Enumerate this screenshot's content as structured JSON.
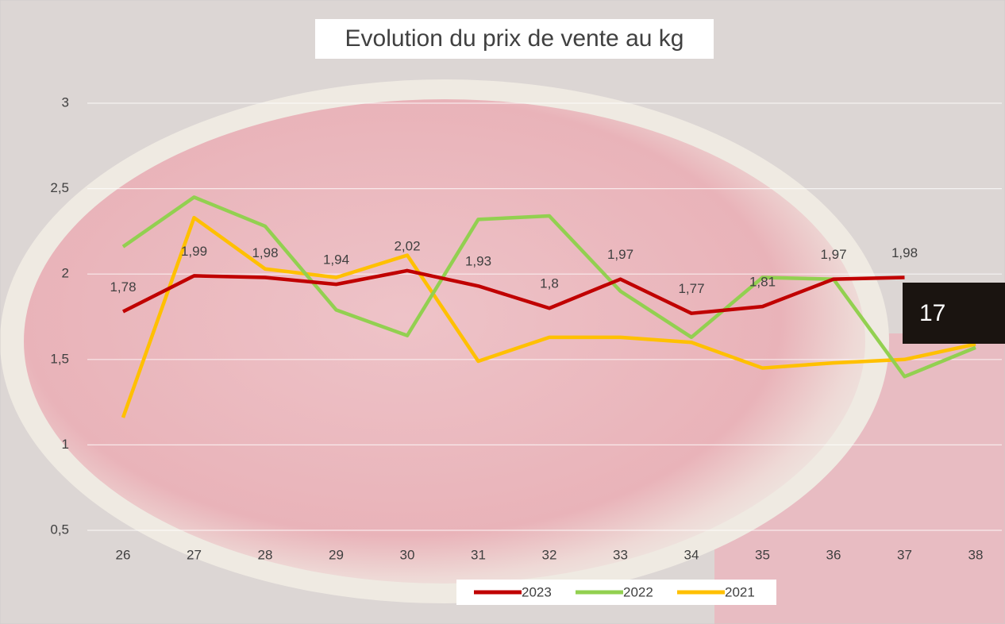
{
  "chart_data": {
    "type": "line",
    "title": "Evolution du prix de vente au kg",
    "categories": [
      "26",
      "27",
      "28",
      "29",
      "30",
      "31",
      "32",
      "33",
      "34",
      "35",
      "36",
      "37",
      "38"
    ],
    "series": [
      {
        "name": "2023",
        "color": "#c00000",
        "values": [
          1.78,
          1.99,
          1.98,
          1.94,
          2.02,
          1.93,
          1.8,
          1.97,
          1.77,
          1.81,
          1.97,
          1.98,
          null
        ],
        "value_labels": [
          "1,78",
          "1,99",
          "1,98",
          "1,94",
          "2,02",
          "1,93",
          "1,8",
          "1,97",
          "1,77",
          "1,81",
          "1,97",
          "1,98",
          null
        ]
      },
      {
        "name": "2022",
        "color": "#92d050",
        "values": [
          2.16,
          2.45,
          2.28,
          1.79,
          1.64,
          2.32,
          2.34,
          1.9,
          1.63,
          1.98,
          1.97,
          1.4,
          1.57
        ]
      },
      {
        "name": "2021",
        "color": "#ffc000",
        "values": [
          1.16,
          2.33,
          2.03,
          1.98,
          2.11,
          1.49,
          1.63,
          1.63,
          1.6,
          1.45,
          1.48,
          1.5,
          1.59
        ]
      }
    ],
    "ylim": [
      0.5,
      3
    ],
    "yticks": [
      {
        "value": 0.5,
        "label": "0,5"
      },
      1,
      {
        "value": 1.5,
        "label": "1,5"
      },
      2,
      {
        "value": 2.5,
        "label": "2,5"
      },
      3
    ],
    "grid": true,
    "legend": "bottom",
    "annotations": [
      {
        "text": "17"
      }
    ]
  }
}
